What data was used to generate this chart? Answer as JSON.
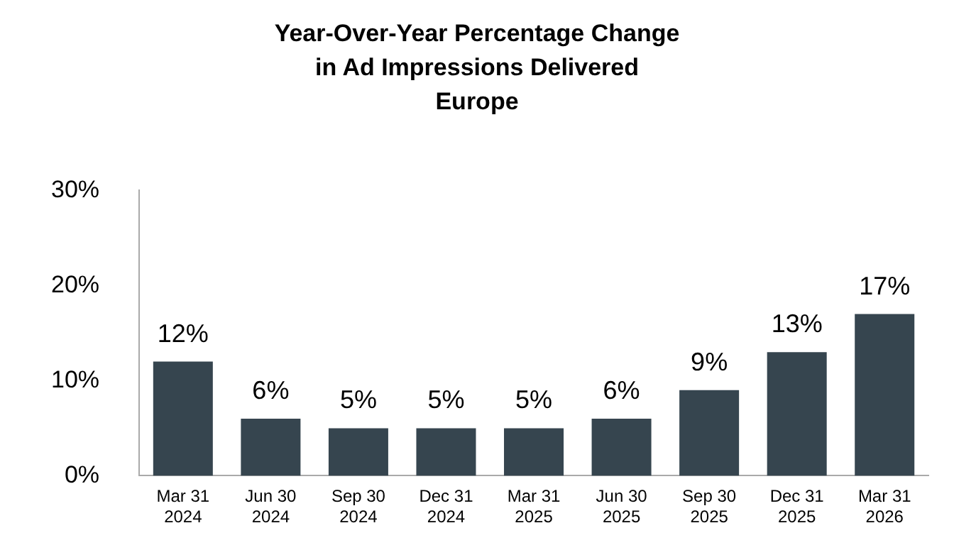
{
  "chart_data": {
    "type": "bar",
    "title": "Year-Over-Year Percentage Change in Ad Impressions Delivered",
    "subtitle": "Europe",
    "categories": [
      "Mar 31 2024",
      "Jun 30 2024",
      "Sep 30 2024",
      "Dec 31 2024",
      "Mar 31 2025",
      "Jun 30 2025",
      "Sep 30 2025",
      "Dec 31 2025",
      "Mar 31 2026"
    ],
    "values": [
      12,
      6,
      5,
      5,
      5,
      6,
      9,
      13,
      17
    ],
    "value_labels": [
      "12%",
      "6%",
      "5%",
      "5%",
      "5%",
      "6%",
      "9%",
      "13%",
      "17%"
    ],
    "color": "#36454f",
    "ylim": [
      0,
      30
    ],
    "yticks": [
      {
        "value": 0,
        "label": "0%"
      },
      {
        "value": 10,
        "label": "10%"
      },
      {
        "value": 20,
        "label": "20%"
      },
      {
        "value": 30,
        "label": "30%"
      }
    ],
    "grid": false,
    "legend": false
  }
}
